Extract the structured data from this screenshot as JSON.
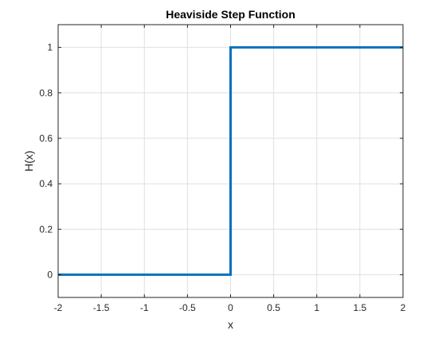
{
  "chart_data": {
    "type": "line",
    "title": "Heaviside Step Function",
    "xlabel": "x",
    "ylabel": "H(x)",
    "xlim": [
      -2,
      2
    ],
    "ylim": [
      -0.1,
      1.1
    ],
    "xticks": [
      -2,
      -1.5,
      -1,
      -0.5,
      0,
      0.5,
      1,
      1.5,
      2
    ],
    "xtick_labels": [
      "-2",
      "-1.5",
      "-1",
      "-0.5",
      "0",
      "0.5",
      "1",
      "1.5",
      "2"
    ],
    "yticks": [
      0,
      0.2,
      0.4,
      0.6,
      0.8,
      1
    ],
    "ytick_labels": [
      "0",
      "0.2",
      "0.4",
      "0.6",
      "0.8",
      "1"
    ],
    "grid": true,
    "legend": "none",
    "series": [
      {
        "color": "#0072BD",
        "x": [
          -2,
          0,
          0,
          2
        ],
        "y": [
          0,
          0,
          1,
          1
        ]
      }
    ]
  }
}
